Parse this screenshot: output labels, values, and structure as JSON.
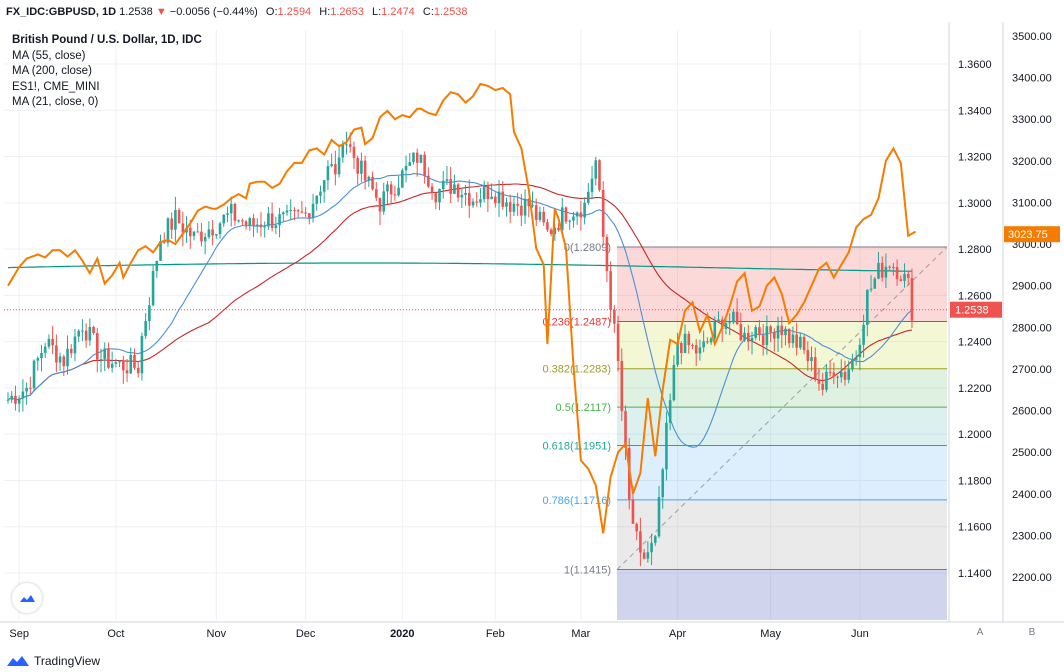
{
  "header": {
    "symbol": "FX_IDC:GBPUSD, 1D",
    "last": "1.2538",
    "change_arrow": "▼",
    "change": "−0.0056 (−0.44%)",
    "open_label": "O:",
    "open": "1.2594",
    "high_label": "H:",
    "high": "1.2653",
    "low_label": "L:",
    "low": "1.2474",
    "close_label": "C:",
    "close": "1.2538"
  },
  "legend": {
    "title": "British Pound / U.S. Dollar, 1D, IDC",
    "items": [
      "MA (55, close)",
      "MA (200, close)",
      "ES1!, CME_MINI",
      "MA (21, close, 0)"
    ]
  },
  "branding": {
    "name": "TradingView"
  },
  "axis_buttons": {
    "a": "A",
    "b": "B"
  },
  "colors": {
    "up": "#26a69a",
    "down": "#ef5350",
    "es": "#f57c00",
    "ma55": "#2196f3",
    "ma200": "#c62828",
    "ma21": "#009688",
    "grid": "#eef0f3"
  },
  "chart_data": {
    "type": "candlestick",
    "x_tick_labels": [
      "Sep",
      "Oct",
      "Nov",
      "Dec",
      "2020",
      "Feb",
      "Mar",
      "Apr",
      "May",
      "Jun"
    ],
    "price_axis": {
      "min": 1.14,
      "max": 1.36,
      "step": 0.02,
      "decimals": 4
    },
    "es_axis": {
      "min": 2200,
      "max": 3500,
      "step": 100
    },
    "price_badge": "1.2538",
    "es_badge": "3023.75",
    "fibonacci": {
      "levels": [
        {
          "ratio": 0,
          "label": "0(1.2809)",
          "price": 1.2809
        },
        {
          "ratio": 0.236,
          "label": "0.236(1.2487)",
          "price": 1.2487,
          "color": "#e53935"
        },
        {
          "ratio": 0.382,
          "label": "0.382(1.2283)",
          "price": 1.2283,
          "color": "#9e9d24"
        },
        {
          "ratio": 0.5,
          "label": "0.5(1.2117)",
          "price": 1.2117,
          "color": "#4caf50"
        },
        {
          "ratio": 0.618,
          "label": "0.618(1.1951)",
          "price": 1.1951,
          "color": "#26a69a"
        },
        {
          "ratio": 0.786,
          "label": "0.786(1.1716)",
          "price": 1.1716,
          "color": "#42a5f5"
        },
        {
          "ratio": 1,
          "label": "1(1.1415)",
          "price": 1.1415,
          "color": "#787b86"
        }
      ]
    },
    "es_series": [
      [
        0,
        2900
      ],
      [
        3,
        2945
      ],
      [
        5,
        2965
      ],
      [
        8,
        2975
      ],
      [
        10,
        2968
      ],
      [
        12,
        2985
      ],
      [
        14,
        2985
      ],
      [
        16,
        2970
      ],
      [
        18,
        2985
      ],
      [
        20,
        2960
      ],
      [
        22,
        2930
      ],
      [
        24,
        2965
      ],
      [
        26,
        2905
      ],
      [
        28,
        2925
      ],
      [
        30,
        2955
      ],
      [
        31,
        2920
      ],
      [
        33,
        2955
      ],
      [
        35,
        2985
      ],
      [
        37,
        2995
      ],
      [
        39,
        2980
      ],
      [
        41,
        3005
      ],
      [
        43,
        3010
      ],
      [
        45,
        3000
      ],
      [
        47,
        3025
      ],
      [
        49,
        3050
      ],
      [
        51,
        3080
      ],
      [
        53,
        3090
      ],
      [
        55,
        3085
      ],
      [
        56,
        3085
      ],
      [
        58,
        3095
      ],
      [
        60,
        3110
      ],
      [
        62,
        3120
      ],
      [
        64,
        3110
      ],
      [
        65,
        3145
      ],
      [
        67,
        3150
      ],
      [
        69,
        3150
      ],
      [
        71,
        3135
      ],
      [
        73,
        3145
      ],
      [
        75,
        3175
      ],
      [
        77,
        3195
      ],
      [
        79,
        3195
      ],
      [
        81,
        3225
      ],
      [
        83,
        3230
      ],
      [
        85,
        3215
      ],
      [
        87,
        3250
      ],
      [
        89,
        3235
      ],
      [
        91,
        3245
      ],
      [
        93,
        3275
      ],
      [
        95,
        3280
      ],
      [
        96,
        3240
      ],
      [
        98,
        3255
      ],
      [
        100,
        3305
      ],
      [
        102,
        3320
      ],
      [
        104,
        3300
      ],
      [
        106,
        3310
      ],
      [
        108,
        3305
      ],
      [
        110,
        3325
      ],
      [
        111,
        3325
      ],
      [
        113,
        3315
      ],
      [
        115,
        3310
      ],
      [
        117,
        3345
      ],
      [
        119,
        3365
      ],
      [
        121,
        3360
      ],
      [
        123,
        3340
      ],
      [
        125,
        3355
      ],
      [
        127,
        3385
      ],
      [
        129,
        3380
      ],
      [
        131,
        3370
      ],
      [
        133,
        3375
      ],
      [
        135,
        3360
      ],
      [
        136,
        3270
      ],
      [
        138,
        3230
      ],
      [
        140,
        3130
      ],
      [
        142,
        2990
      ],
      [
        144,
        2950
      ],
      [
        145,
        2760
      ],
      [
        147,
        3085
      ],
      [
        148,
        3060
      ],
      [
        150,
        2990
      ],
      [
        152,
        2710
      ],
      [
        154,
        2480
      ],
      [
        156,
        2460
      ],
      [
        158,
        2420
      ],
      [
        160,
        2305
      ],
      [
        162,
        2440
      ],
      [
        164,
        2500
      ],
      [
        166,
        2520
      ],
      [
        168,
        2400
      ],
      [
        170,
        2450
      ],
      [
        172,
        2630
      ],
      [
        174,
        2490
      ],
      [
        176,
        2650
      ],
      [
        178,
        2770
      ],
      [
        180,
        2760
      ],
      [
        182,
        2840
      ],
      [
        184,
        2860
      ],
      [
        186,
        2790
      ],
      [
        188,
        2830
      ],
      [
        190,
        2760
      ],
      [
        192,
        2800
      ],
      [
        194,
        2850
      ],
      [
        196,
        2910
      ],
      [
        198,
        2930
      ],
      [
        200,
        2840
      ],
      [
        202,
        2850
      ],
      [
        204,
        2900
      ],
      [
        206,
        2920
      ],
      [
        208,
        2880
      ],
      [
        210,
        2810
      ],
      [
        212,
        2830
      ],
      [
        214,
        2860
      ],
      [
        216,
        2900
      ],
      [
        218,
        2940
      ],
      [
        220,
        2955
      ],
      [
        222,
        2920
      ],
      [
        224,
        2950
      ],
      [
        226,
        2980
      ],
      [
        228,
        3040
      ],
      [
        230,
        3060
      ],
      [
        232,
        3070
      ],
      [
        234,
        3110
      ],
      [
        236,
        3200
      ],
      [
        238,
        3230
      ],
      [
        240,
        3195
      ],
      [
        242,
        3020
      ],
      [
        244,
        3030
      ]
    ]
  }
}
